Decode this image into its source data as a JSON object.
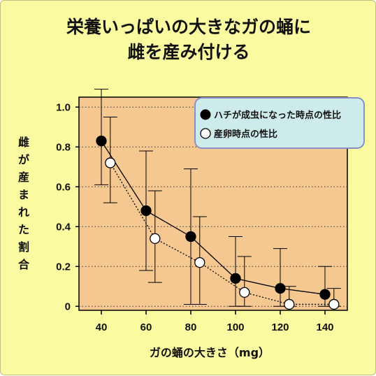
{
  "chart_data": {
    "type": "line",
    "title": [
      "栄養いっぱいの大きなガの蛹に",
      "雌を産み付ける"
    ],
    "ylabel": "雌が産まれた割合",
    "xlabel": "ガの蛹の大きさ（mg）",
    "xlim": [
      30,
      150
    ],
    "ylim": [
      -0.02,
      1.05
    ],
    "x_ticks": [
      40,
      60,
      80,
      100,
      120,
      140
    ],
    "y_ticks": [
      0,
      0.2,
      0.4,
      0.6,
      0.8,
      1.0
    ],
    "y_tick_labels": [
      "0",
      "0.2",
      "0.4",
      "0.6",
      "0.8",
      "1.0"
    ],
    "grid": "horizontal dotted",
    "legend_position": "top-right",
    "colors": {
      "background": "#fafaa0",
      "plot_area": "#f5c892",
      "legend_fill": "#cdebea",
      "legend_border": "#8a8fc8",
      "series_filled": "#000000",
      "series_open": "#ffffff"
    },
    "series": [
      {
        "name": "ハチが成虫になった時点の性比",
        "marker": "filled-circle",
        "line": "solid",
        "x": [
          40,
          60,
          80,
          100,
          120,
          140
        ],
        "y": [
          0.83,
          0.48,
          0.35,
          0.14,
          0.09,
          0.06
        ],
        "err_low": [
          0.61,
          0.18,
          0.01,
          0.0,
          0.0,
          0.0
        ],
        "err_high": [
          1.09,
          0.78,
          0.69,
          0.35,
          0.29,
          0.2
        ]
      },
      {
        "name": "産卵時点の性比",
        "marker": "open-circle",
        "line": "dotted",
        "x": [
          44,
          64,
          84,
          104,
          124,
          144
        ],
        "y": [
          0.72,
          0.34,
          0.22,
          0.07,
          0.01,
          0.01
        ],
        "err_low": [
          0.52,
          0.12,
          0.01,
          0.0,
          0.0,
          0.0
        ],
        "err_high": [
          0.95,
          0.58,
          0.45,
          0.25,
          0.1,
          0.09
        ]
      }
    ]
  }
}
